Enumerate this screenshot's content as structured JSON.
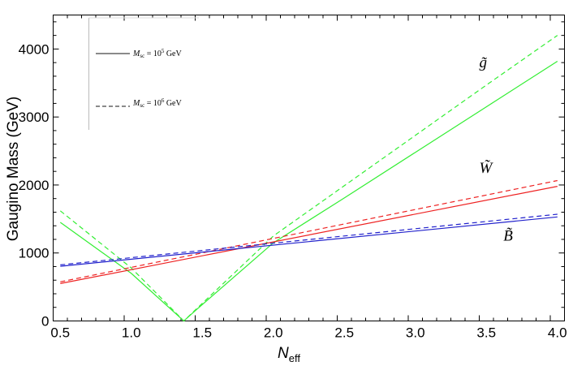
{
  "chart_data": {
    "type": "line",
    "xlabel": {
      "main": "N",
      "sub": "eff"
    },
    "ylabel": "Gaugino Mass (GeV)",
    "xlim": [
      0.45,
      4.05
    ],
    "ylim": [
      0,
      4500
    ],
    "x_ticks": [
      "0.5",
      "1.0",
      "1.5",
      "2.0",
      "2.5",
      "3.0",
      "3.5",
      "4.0"
    ],
    "y_ticks": [
      "0",
      "1000",
      "2000",
      "3000",
      "4000"
    ],
    "grid": false,
    "legend": {
      "placement": "top-left",
      "entries": [
        {
          "style": "solid",
          "prefix": "M",
          "sub": "sc",
          "rel": " = 10",
          "sup": "5",
          "unit": " GeV"
        },
        {
          "style": "dashed",
          "prefix": "M",
          "sub": "sc",
          "rel": " = 10",
          "sup": "6",
          "unit": " GeV"
        }
      ]
    },
    "colors": {
      "gluino": "#33ee33",
      "wino": "#ee2222",
      "bino": "#2222cc"
    },
    "curve_labels": [
      {
        "series": "gluino",
        "text": "g̃",
        "at": [
          3.45,
          3730
        ]
      },
      {
        "series": "wino",
        "text": "W̃",
        "at": [
          3.45,
          2180
        ]
      },
      {
        "series": "bino",
        "text": "B̃",
        "at": [
          3.62,
          1180
        ]
      }
    ],
    "series": [
      {
        "id": "gluino-solid",
        "color": "#33ee33",
        "dash": "solid",
        "x": [
          0.5,
          1.0,
          1.37,
          1.45,
          2.0,
          2.5,
          3.0,
          3.5,
          4.0
        ],
        "y": [
          1450,
          700,
          0,
          150,
          1150,
          1810,
          2480,
          3150,
          3820
        ]
      },
      {
        "id": "gluino-dashed",
        "color": "#33ee33",
        "dash": "dashed",
        "x": [
          0.5,
          1.0,
          1.37,
          1.45,
          2.0,
          2.5,
          3.0,
          3.5,
          4.0
        ],
        "y": [
          1620,
          780,
          0,
          160,
          1250,
          1990,
          2730,
          3470,
          4200
        ]
      },
      {
        "id": "wino-solid",
        "color": "#ee2222",
        "dash": "solid",
        "x": [
          0.5,
          4.0
        ],
        "y": [
          550,
          1980
        ]
      },
      {
        "id": "wino-dashed",
        "color": "#ee2222",
        "dash": "dashed",
        "x": [
          0.5,
          4.0
        ],
        "y": [
          575,
          2065
        ]
      },
      {
        "id": "bino-solid",
        "color": "#2222cc",
        "dash": "solid",
        "x": [
          0.5,
          4.0
        ],
        "y": [
          805,
          1530
        ]
      },
      {
        "id": "bino-dashed",
        "color": "#2222cc",
        "dash": "dashed",
        "x": [
          0.5,
          4.0
        ],
        "y": [
          825,
          1570
        ]
      }
    ]
  }
}
